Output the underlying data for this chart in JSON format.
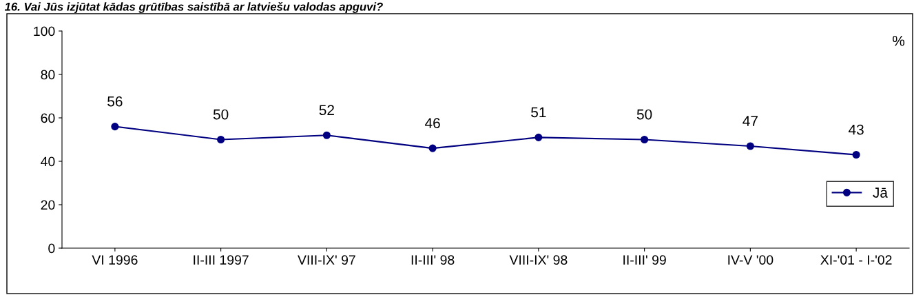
{
  "chart_data": {
    "type": "line",
    "title": "16. Vai Jūs izjūtat kādas grūtības saistībā ar latviešu valodas apguvi?",
    "categories": [
      "VI 1996",
      "II-III 1997",
      "VIII-IX' 97",
      "II-III' 98",
      "VIII-IX' 98",
      "II-III' 99",
      "IV-V '00",
      "XI-'01 - I-'02"
    ],
    "series": [
      {
        "name": "Jā",
        "color": "#000080",
        "values": [
          56,
          50,
          52,
          46,
          51,
          50,
          47,
          43
        ]
      }
    ],
    "ylim": [
      0,
      100
    ],
    "yticks": [
      0,
      20,
      40,
      60,
      80,
      100
    ],
    "annotations": [
      "%"
    ],
    "data_labels": true,
    "marker": "circle",
    "line_style": "solid",
    "legend": "right",
    "grid": false
  }
}
